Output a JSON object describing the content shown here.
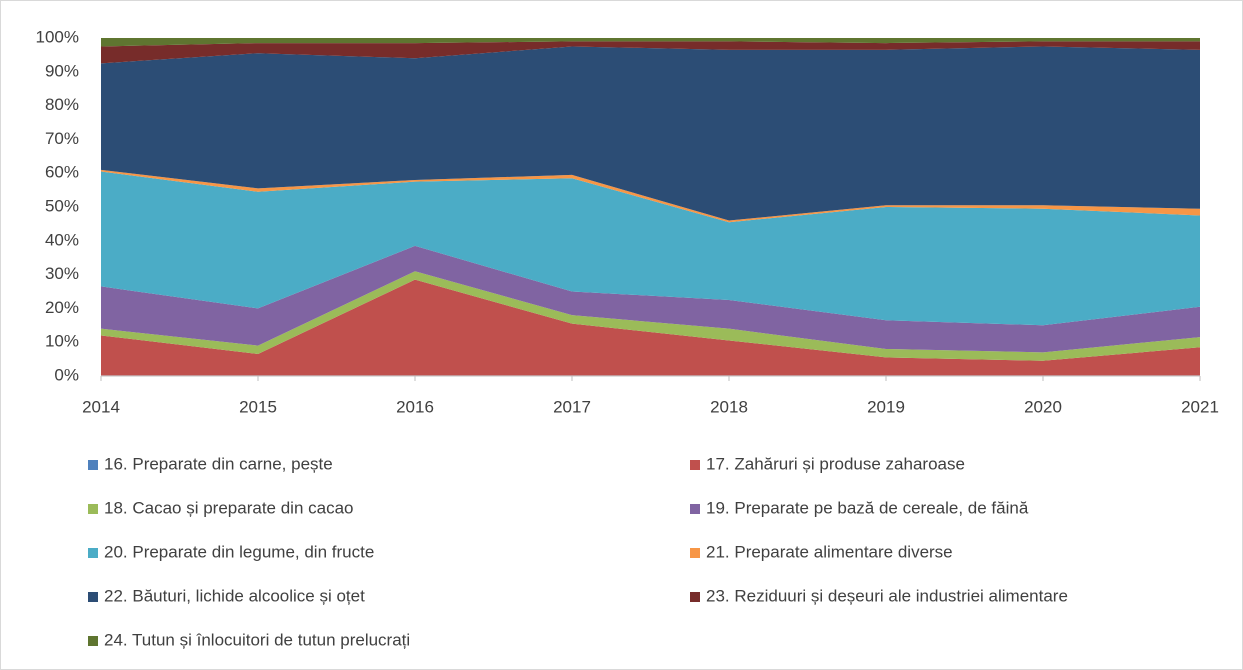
{
  "chart_data": {
    "type": "stacked_area_percent",
    "categories": [
      "2014",
      "2015",
      "2016",
      "2017",
      "2018",
      "2019",
      "2020",
      "2021"
    ],
    "ylim": [
      0,
      100
    ],
    "yticks": [
      {
        "value": 0,
        "label": "0%"
      },
      {
        "value": 10,
        "label": "10%"
      },
      {
        "value": 20,
        "label": "20%"
      },
      {
        "value": 30,
        "label": "30%"
      },
      {
        "value": 40,
        "label": "40%"
      },
      {
        "value": 50,
        "label": "50%"
      },
      {
        "value": 60,
        "label": "60%"
      },
      {
        "value": 70,
        "label": "70%"
      },
      {
        "value": 80,
        "label": "80%"
      },
      {
        "value": 90,
        "label": "90%"
      },
      {
        "value": 100,
        "label": "100%"
      }
    ],
    "legend": "bottom",
    "series": [
      {
        "name": "16. Preparate din carne, pește",
        "color": "#4f81bd",
        "values": [
          0.2,
          0.2,
          0.2,
          0.2,
          0.2,
          0.2,
          0.2,
          0.2
        ]
      },
      {
        "name": "17. Zahăruri și produse zaharoase",
        "color": "#c0504d",
        "values": [
          11.8,
          6.3,
          28.3,
          15.3,
          10.3,
          5.3,
          4.3,
          8.3
        ]
      },
      {
        "name": "18. Cacao și preparate din cacao",
        "color": "#9bbb59",
        "values": [
          2,
          2.5,
          2.5,
          2.5,
          3.5,
          2.5,
          2.5,
          3
        ]
      },
      {
        "name": "19. Preparate pe bază de cereale, de făină",
        "color": "#8064a2",
        "values": [
          12.5,
          11,
          7.5,
          7,
          8.5,
          8.5,
          8,
          9
        ]
      },
      {
        "name": "20. Preparate din legume, din fructe",
        "color": "#4bacc6",
        "values": [
          34,
          34.5,
          19,
          33.5,
          23,
          33.5,
          34.5,
          27
        ]
      },
      {
        "name": "21. Preparate alimentare diverse",
        "color": "#f79646",
        "values": [
          0.5,
          1,
          0.5,
          1,
          0.5,
          0.5,
          1,
          2
        ]
      },
      {
        "name": "22. Băuturi, lichide alcoolice și oțet",
        "color": "#2c4d75",
        "values": [
          31.5,
          40,
          36,
          38,
          50.5,
          46,
          47,
          47
        ]
      },
      {
        "name": "23. Reziduuri și deșeuri ale industriei alimentare",
        "color": "#772c2a",
        "values": [
          5,
          3,
          4.5,
          1.5,
          2.5,
          2,
          1.5,
          2.5
        ]
      },
      {
        "name": "24. Tutun și înlocuitori de tutun prelucrați",
        "color": "#5f7530",
        "values": [
          2.5,
          1.5,
          1.5,
          1,
          1,
          1.5,
          1,
          1
        ]
      }
    ]
  }
}
